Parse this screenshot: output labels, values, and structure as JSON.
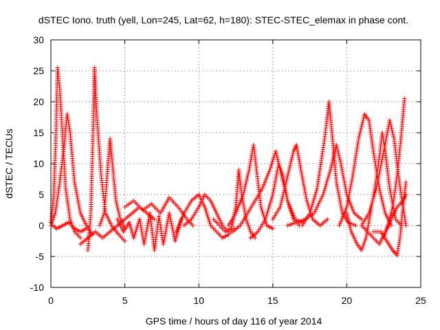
{
  "chart_data": {
    "type": "scatter",
    "title": "dSTEC Iono. truth (yell, Lon=245, Lat=62, h=180): STEC-STEC_elemax in phase cont.",
    "xlabel": "GPS time / hours of day 116 of year 2014",
    "ylabel": "dSTEC  / TECUs",
    "xlim": [
      0,
      25
    ],
    "ylim": [
      -10,
      30
    ],
    "xticks": [
      "0",
      "5",
      "10",
      "15",
      "20",
      "25"
    ],
    "yticks": [
      "-10",
      "-5",
      "0",
      "5",
      "10",
      "15",
      "20",
      "25",
      "30"
    ],
    "grid": true,
    "marker": "+",
    "series": [
      {
        "color": "#ff0000",
        "tracks": [
          [
            [
              0.0,
              0.5
            ],
            [
              0.2,
              5
            ],
            [
              0.35,
              15
            ],
            [
              0.45,
              25.5
            ],
            [
              0.6,
              22
            ],
            [
              0.8,
              14
            ],
            [
              1.0,
              6
            ],
            [
              1.3,
              1
            ],
            [
              1.6,
              -1
            ],
            [
              2.0,
              -2
            ]
          ],
          [
            [
              0.0,
              0
            ],
            [
              0.3,
              2
            ],
            [
              0.6,
              7
            ],
            [
              0.9,
              13
            ],
            [
              1.1,
              18
            ],
            [
              1.3,
              15
            ],
            [
              1.6,
              7
            ],
            [
              2.0,
              2
            ],
            [
              2.4,
              0
            ],
            [
              2.8,
              -1.5
            ]
          ],
          [
            [
              0.1,
              0
            ],
            [
              0.4,
              -0.5
            ],
            [
              0.8,
              0
            ],
            [
              1.2,
              0.5
            ],
            [
              1.6,
              -0.5
            ],
            [
              2.0,
              -1
            ],
            [
              2.4,
              -0.5
            ]
          ],
          [
            [
              2.5,
              -4
            ],
            [
              2.7,
              2
            ],
            [
              2.85,
              15
            ],
            [
              2.95,
              25.5
            ],
            [
              3.1,
              18
            ],
            [
              3.4,
              8
            ],
            [
              3.7,
              2
            ],
            [
              4.1,
              0
            ],
            [
              4.6,
              -1.5
            ],
            [
              5.0,
              -2.5
            ]
          ],
          [
            [
              3.3,
              0
            ],
            [
              3.6,
              2
            ],
            [
              3.8,
              8
            ],
            [
              4.0,
              14
            ],
            [
              4.2,
              9
            ],
            [
              4.4,
              4
            ],
            [
              4.7,
              1
            ],
            [
              5.0,
              -0.5
            ]
          ],
          [
            [
              2.0,
              -3
            ],
            [
              2.5,
              -2
            ],
            [
              3.0,
              -1
            ],
            [
              3.5,
              -2
            ],
            [
              4.0,
              -1
            ],
            [
              4.5,
              0
            ],
            [
              5.0,
              1
            ],
            [
              5.5,
              2
            ],
            [
              6.0,
              3
            ],
            [
              6.5,
              2
            ],
            [
              7.0,
              1
            ]
          ],
          [
            [
              4.5,
              1
            ],
            [
              4.9,
              -1
            ],
            [
              5.3,
              0.5
            ],
            [
              5.6,
              -2
            ],
            [
              6.0,
              1
            ],
            [
              6.3,
              -3
            ],
            [
              6.7,
              2
            ],
            [
              7.0,
              -4
            ],
            [
              7.3,
              1.5
            ],
            [
              7.6,
              -3
            ],
            [
              8.0,
              2
            ],
            [
              8.4,
              -2.5
            ],
            [
              8.8,
              1
            ]
          ],
          [
            [
              5.0,
              3
            ],
            [
              5.6,
              4
            ],
            [
              6.2,
              2.5
            ],
            [
              6.8,
              3.5
            ],
            [
              7.4,
              2
            ],
            [
              8.0,
              4.5
            ],
            [
              8.6,
              3
            ],
            [
              9.2,
              1
            ],
            [
              9.6,
              0
            ]
          ],
          [
            [
              8.5,
              -1
            ],
            [
              9.0,
              2
            ],
            [
              9.5,
              4
            ],
            [
              10.0,
              5
            ],
            [
              10.4,
              3
            ],
            [
              10.8,
              0
            ],
            [
              11.2,
              -1
            ],
            [
              11.6,
              -2
            ],
            [
              12.0,
              -1.5
            ],
            [
              12.4,
              -0.5
            ]
          ],
          [
            [
              9.0,
              0
            ],
            [
              9.5,
              1
            ],
            [
              10.0,
              3
            ],
            [
              10.4,
              5
            ],
            [
              10.8,
              4
            ],
            [
              11.2,
              2
            ],
            [
              11.6,
              0
            ],
            [
              12.0,
              -1
            ]
          ],
          [
            [
              11.0,
              1
            ],
            [
              11.4,
              0
            ],
            [
              11.8,
              -1
            ],
            [
              12.2,
              -0.5
            ],
            [
              12.5,
              3
            ],
            [
              12.7,
              9
            ],
            [
              12.9,
              5
            ],
            [
              13.2,
              1
            ],
            [
              13.5,
              -1
            ],
            [
              13.8,
              -2
            ]
          ],
          [
            [
              12.0,
              0
            ],
            [
              12.5,
              2
            ],
            [
              13.0,
              5
            ],
            [
              13.4,
              9
            ],
            [
              13.7,
              13
            ],
            [
              13.9,
              9
            ],
            [
              14.2,
              3
            ],
            [
              14.6,
              0
            ],
            [
              15.0,
              -0.5
            ]
          ],
          [
            [
              12.3,
              -1
            ],
            [
              12.8,
              0
            ],
            [
              13.3,
              2
            ],
            [
              13.8,
              4
            ],
            [
              14.3,
              6
            ],
            [
              14.8,
              9
            ],
            [
              15.2,
              12
            ],
            [
              15.6,
              8
            ],
            [
              16.0,
              4
            ],
            [
              16.5,
              1
            ],
            [
              17.0,
              0.5
            ]
          ],
          [
            [
              13.5,
              -2
            ],
            [
              14.0,
              -1
            ],
            [
              14.5,
              1
            ],
            [
              15.0,
              5
            ],
            [
              15.4,
              10
            ],
            [
              15.7,
              8
            ],
            [
              16.0,
              4
            ],
            [
              16.4,
              1
            ],
            [
              16.8,
              0
            ]
          ],
          [
            [
              15.0,
              1
            ],
            [
              15.5,
              3
            ],
            [
              16.0,
              8
            ],
            [
              16.4,
              12
            ],
            [
              16.6,
              13
            ],
            [
              16.9,
              9
            ],
            [
              17.3,
              4
            ],
            [
              17.7,
              1
            ],
            [
              18.2,
              0
            ],
            [
              18.7,
              1
            ]
          ],
          [
            [
              17.0,
              0
            ],
            [
              17.5,
              2
            ],
            [
              18.0,
              6
            ],
            [
              18.5,
              14
            ],
            [
              18.8,
              20
            ],
            [
              19.0,
              15
            ],
            [
              19.3,
              7
            ],
            [
              19.7,
              2
            ],
            [
              20.1,
              0.5
            ],
            [
              20.6,
              0
            ]
          ],
          [
            [
              16.0,
              0
            ],
            [
              16.6,
              0.5
            ],
            [
              17.2,
              1
            ],
            [
              17.8,
              2
            ],
            [
              18.4,
              5
            ],
            [
              18.9,
              9
            ],
            [
              19.3,
              13
            ],
            [
              19.6,
              10
            ],
            [
              20.0,
              5
            ],
            [
              20.5,
              2
            ],
            [
              21.0,
              1
            ]
          ],
          [
            [
              19.5,
              0
            ],
            [
              20.0,
              3
            ],
            [
              20.4,
              8
            ],
            [
              20.8,
              14
            ],
            [
              21.2,
              18
            ],
            [
              21.5,
              17
            ],
            [
              21.8,
              12
            ],
            [
              22.2,
              6
            ],
            [
              22.6,
              2
            ],
            [
              23.0,
              0
            ]
          ],
          [
            [
              20.0,
              2
            ],
            [
              20.3,
              -1
            ],
            [
              20.7,
              -3
            ],
            [
              21.0,
              -4
            ],
            [
              21.3,
              -2
            ],
            [
              21.6,
              2
            ],
            [
              21.9,
              6
            ],
            [
              22.2,
              11
            ],
            [
              22.4,
              15
            ],
            [
              22.6,
              12
            ],
            [
              22.9,
              6
            ],
            [
              23.3,
              1
            ],
            [
              23.7,
              0
            ]
          ],
          [
            [
              21.0,
              0
            ],
            [
              21.5,
              2
            ],
            [
              22.0,
              6
            ],
            [
              22.5,
              12
            ],
            [
              22.9,
              17
            ],
            [
              23.2,
              14
            ],
            [
              23.5,
              8
            ],
            [
              23.8,
              3
            ],
            [
              24.0,
              0
            ]
          ],
          [
            [
              22.5,
              -2
            ],
            [
              22.8,
              0
            ],
            [
              23.1,
              3
            ],
            [
              23.4,
              8
            ],
            [
              23.7,
              15
            ],
            [
              23.9,
              20.5
            ]
          ],
          [
            [
              21.8,
              -1
            ],
            [
              22.3,
              -1
            ],
            [
              22.7,
              -2.5
            ],
            [
              23.1,
              -4
            ],
            [
              23.4,
              -4.8
            ],
            [
              23.6,
              -2
            ],
            [
              23.8,
              3
            ],
            [
              24.0,
              7
            ]
          ],
          [
            [
              21.0,
              0
            ],
            [
              21.4,
              -1
            ],
            [
              21.8,
              -2
            ],
            [
              22.2,
              -3
            ],
            [
              22.6,
              -1
            ],
            [
              23.0,
              1
            ],
            [
              23.4,
              3
            ],
            [
              23.8,
              4
            ],
            [
              24.0,
              5
            ]
          ]
        ]
      }
    ]
  }
}
